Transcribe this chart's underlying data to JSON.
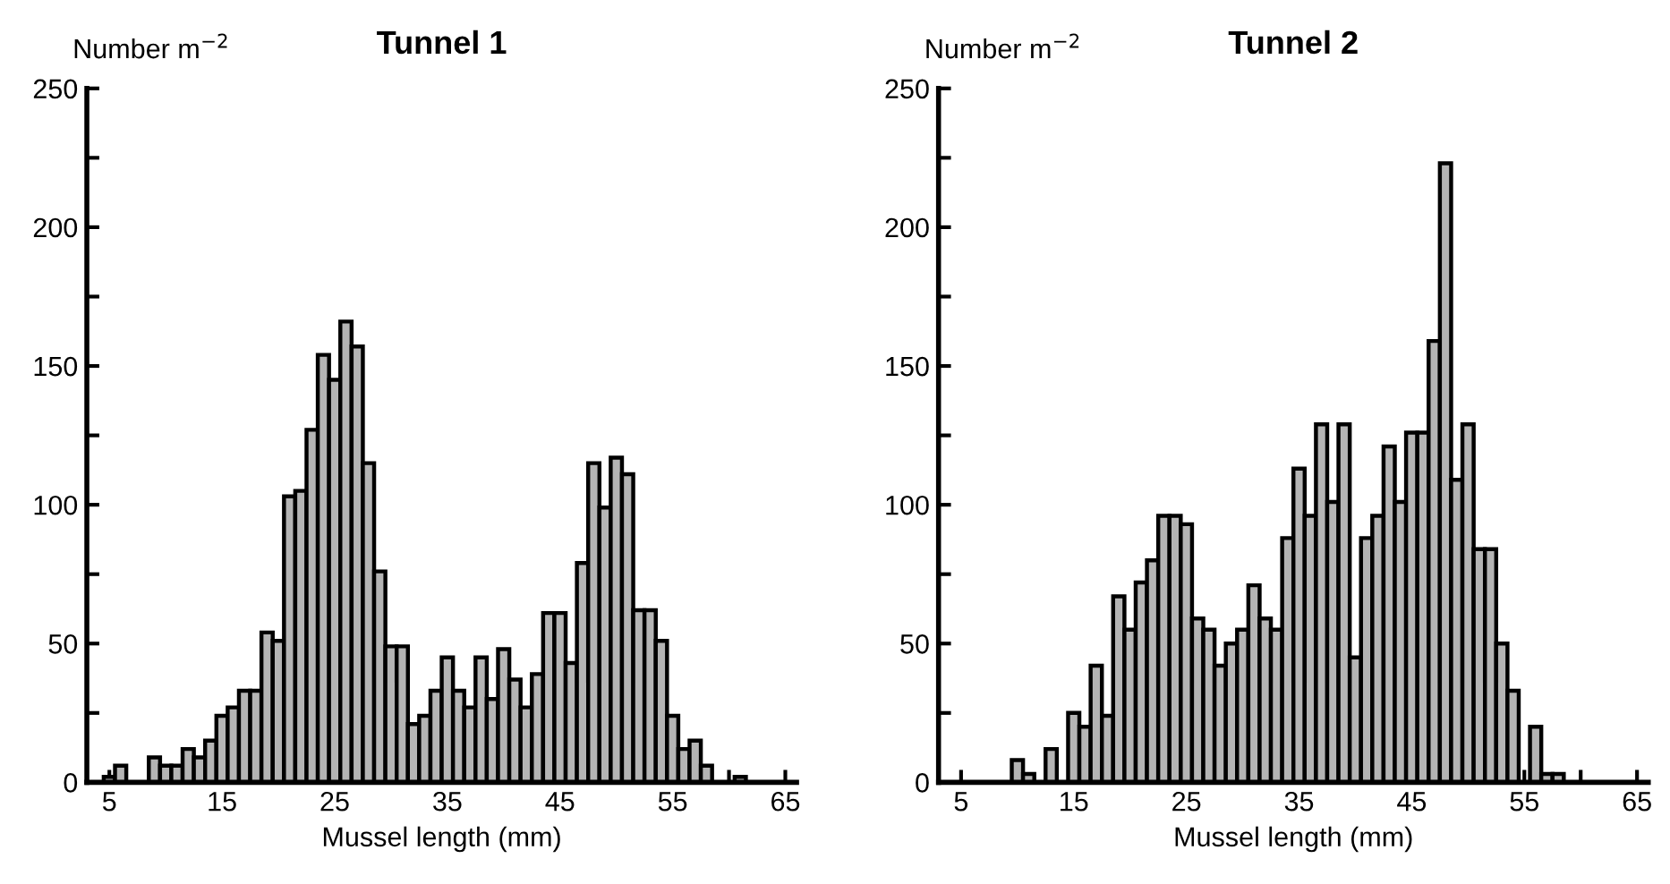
{
  "chart_data": [
    {
      "type": "histogram",
      "title": "Tunnel 1",
      "xlabel": "Mussel length (mm)",
      "ylabel": "Number m$^{−2}$",
      "color": "#b4b4b4",
      "bins": [
        4.5,
        5.5,
        6.5,
        7.5,
        8.5,
        9.5,
        10.5,
        11.5,
        12.5,
        13.5,
        14.5,
        15.5,
        16.5,
        17.5,
        18.5,
        19.5,
        20.5,
        21.5,
        22.5,
        23.5,
        24.5,
        25.5,
        26.5,
        27.5,
        28.5,
        29.5,
        30.5,
        31.5,
        32.5,
        33.5,
        34.5,
        35.5,
        36.5,
        37.5,
        38.5,
        39.5,
        40.5,
        41.5,
        42.5,
        43.5,
        44.5,
        45.5,
        46.5,
        47.5,
        48.5,
        49.5,
        50.5,
        51.5,
        52.5,
        53.5,
        54.5,
        55.5,
        56.5,
        57.5,
        58.5,
        59.5,
        60.5,
        61.5
      ],
      "values": [
        2,
        6,
        0,
        0,
        9,
        6,
        6,
        12,
        9,
        15,
        24,
        27,
        33,
        33,
        54,
        51,
        103,
        105,
        127,
        154,
        145,
        166,
        157,
        115,
        76,
        49,
        49,
        21,
        24,
        33,
        45,
        33,
        27,
        45,
        30,
        48,
        37,
        27,
        39,
        61,
        61,
        43,
        79,
        115,
        99,
        117,
        111,
        62,
        62,
        51,
        24,
        12,
        15,
        6,
        0,
        0,
        2
      ],
      "xlim": [
        3,
        66
      ],
      "xticks": [
        5,
        {
          "value": 10,
          "label": null
        },
        15,
        {
          "value": 20,
          "label": null
        },
        25,
        {
          "value": 30,
          "label": null
        },
        35,
        {
          "value": 40,
          "label": null
        },
        45,
        {
          "value": 50,
          "label": null
        },
        55,
        {
          "value": 60,
          "label": null
        },
        65
      ],
      "ylim": [
        0,
        250
      ],
      "yticks": [
        0,
        {
          "value": 25,
          "label": null
        },
        50,
        {
          "value": 75,
          "label": null
        },
        100,
        {
          "value": 125,
          "label": null
        },
        150,
        {
          "value": 175,
          "label": null
        },
        200,
        {
          "value": 225,
          "label": null
        },
        250
      ]
    },
    {
      "type": "histogram",
      "title": "Tunnel 2",
      "xlabel": "Mussel length (mm)",
      "ylabel": "Number m$^{−2}$",
      "color": "#b4b4b4",
      "bins": [
        9.5,
        10.5,
        11.5,
        12.5,
        13.5,
        14.5,
        15.5,
        16.5,
        17.5,
        18.5,
        19.5,
        20.5,
        21.5,
        22.5,
        23.5,
        24.5,
        25.5,
        26.5,
        27.5,
        28.5,
        29.5,
        30.5,
        31.5,
        32.5,
        33.5,
        34.5,
        35.5,
        36.5,
        37.5,
        38.5,
        39.5,
        40.5,
        41.5,
        42.5,
        43.5,
        44.5,
        45.5,
        46.5,
        47.5,
        48.5,
        49.5,
        50.5,
        51.5,
        52.5,
        53.5,
        54.5,
        55.5,
        56.5,
        57.5,
        58.5
      ],
      "values": [
        8,
        3,
        0,
        12,
        0,
        25,
        20,
        42,
        24,
        67,
        55,
        72,
        80,
        96,
        96,
        93,
        59,
        55,
        42,
        50,
        55,
        71,
        59,
        55,
        88,
        113,
        96,
        129,
        101,
        129,
        45,
        88,
        96,
        121,
        101,
        126,
        126,
        159,
        223,
        109,
        129,
        84,
        84,
        50,
        33,
        0,
        20,
        3,
        3
      ],
      "xlim": [
        3,
        66
      ],
      "xticks": [
        5,
        {
          "value": 10,
          "label": null
        },
        15,
        {
          "value": 20,
          "label": null
        },
        25,
        {
          "value": 30,
          "label": null
        },
        35,
        {
          "value": 40,
          "label": null
        },
        45,
        {
          "value": 50,
          "label": null
        },
        55,
        {
          "value": 60,
          "label": null
        },
        65
      ],
      "ylim": [
        0,
        250
      ],
      "yticks": [
        0,
        {
          "value": 25,
          "label": null
        },
        50,
        {
          "value": 75,
          "label": null
        },
        100,
        {
          "value": 125,
          "label": null
        },
        150,
        {
          "value": 175,
          "label": null
        },
        200,
        {
          "value": 225,
          "label": null
        },
        250
      ]
    }
  ]
}
